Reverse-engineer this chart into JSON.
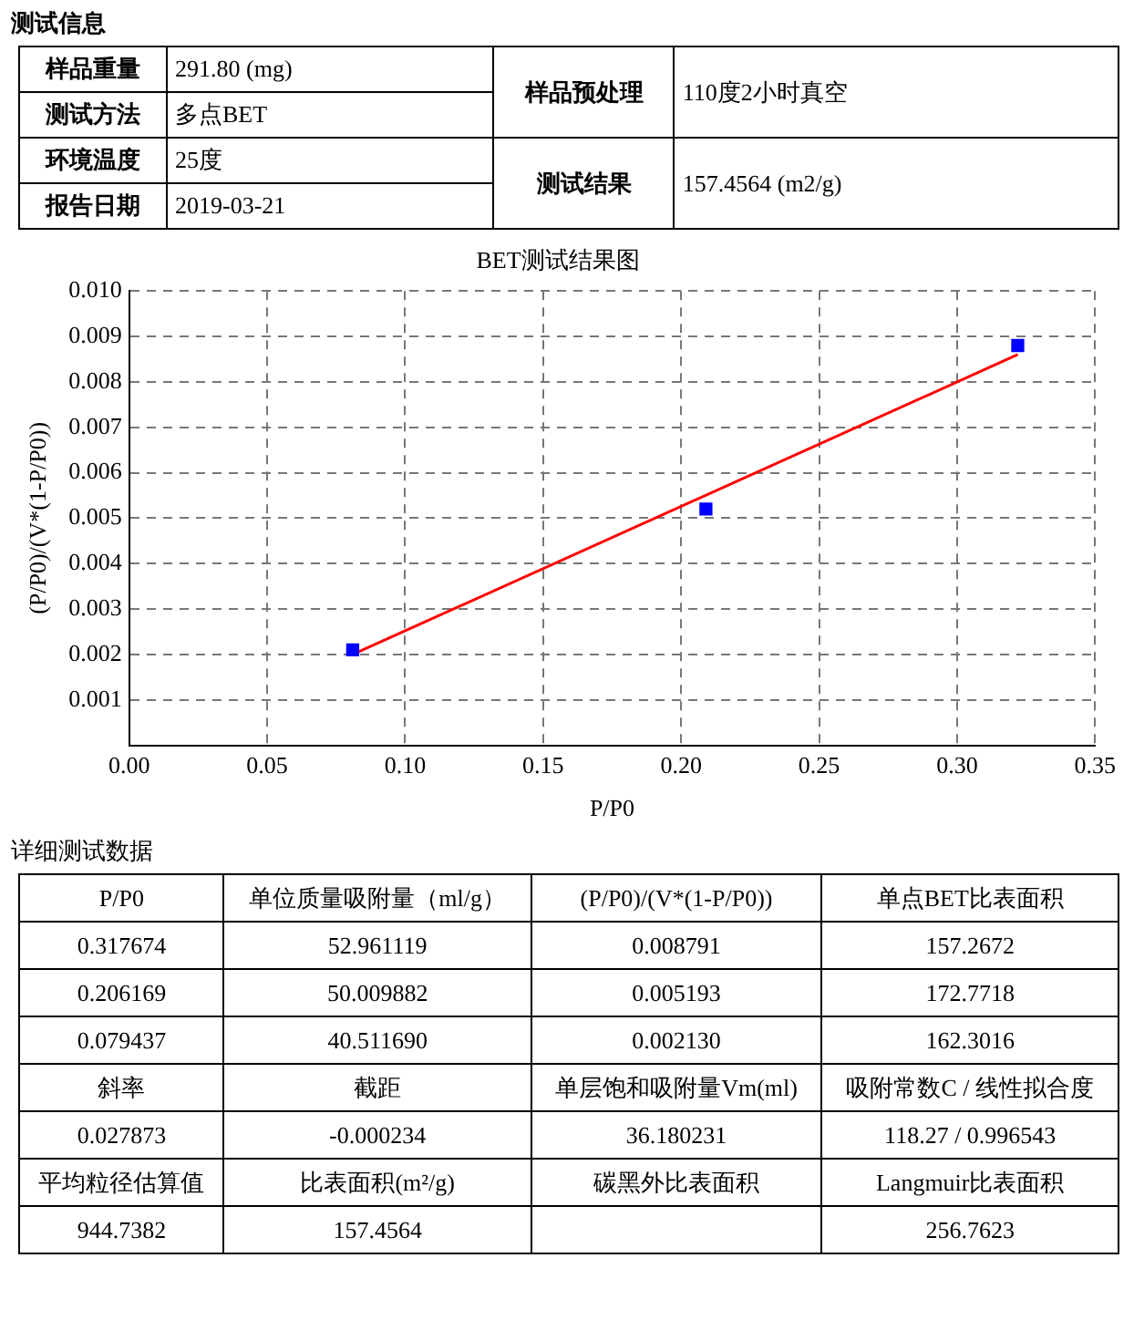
{
  "chart_data": [
    {
      "type": "other",
      "title": "测试信息",
      "annotations": [
        "样品重量",
        "291.80 (mg)",
        "测试方法",
        "多点BET",
        "环境温度",
        "25度",
        "报告日期",
        "2019-03-21",
        "样品预处理",
        "110度2小时真空",
        "测试结果",
        "157.4564 (m2/g)"
      ]
    },
    {
      "type": "scatter",
      "title": "BET测试结果图",
      "xlabel": "P/P0",
      "ylabel": "(P/P0)/(V*(1-P/P0))",
      "series": [
        {
          "type": "scatter",
          "color": "#0000ff",
          "marker": "square",
          "x": [
            0.081,
            0.209,
            0.322
          ],
          "values": [
            0.0021,
            0.0052,
            0.0088
          ]
        },
        {
          "type": "line",
          "color": "#ff0000",
          "marker": "none",
          "x": [
            0.081,
            0.322
          ],
          "values": [
            0.002,
            0.0086
          ]
        }
      ],
      "xlim": [
        0,
        0.35
      ],
      "ylim": [
        0,
        0.01
      ],
      "xticks": [
        {
          "value": 0,
          "label": "0.00"
        },
        {
          "value": 0.05,
          "label": "0.05"
        },
        {
          "value": 0.1,
          "label": "0.10"
        },
        {
          "value": 0.15,
          "label": "0.15"
        },
        {
          "value": 0.2,
          "label": "0.20"
        },
        {
          "value": 0.25,
          "label": "0.25"
        },
        {
          "value": 0.3,
          "label": "0.30"
        },
        {
          "value": 0.35,
          "label": "0.35"
        }
      ],
      "yticks": [
        0.001,
        0.002,
        0.003,
        0.004,
        0.005,
        0.006,
        0.007,
        0.008,
        0.009,
        {
          "value": 0.01,
          "label": "0.010"
        }
      ],
      "grid": true,
      "legend": false
    },
    {
      "type": "other",
      "title": "详细测试数据",
      "annotations": [
        "P/P0",
        "单位质量吸附量（ml/g）",
        "(P/P0)/(V*(1-P/P0))",
        "单点BET比表面积",
        "0.317674",
        "52.961119",
        "0.008791",
        "157.2672",
        "0.206169",
        "50.009882",
        "0.005193",
        "172.7718",
        "0.079437",
        "40.511690",
        "0.002130",
        "162.3016",
        "斜率",
        "截距",
        "单层饱和吸附量Vm(ml)",
        "吸附常数C / 线性拟合度",
        "0.027873",
        "-0.000234",
        "36.180231",
        "118.27 / 0.996543",
        "平均粒径估算值",
        "比表面积(m²/g)",
        "碳黑外比表面积",
        "Langmuir比表面积",
        "944.7382",
        "157.4564",
        "256.7623"
      ]
    }
  ]
}
